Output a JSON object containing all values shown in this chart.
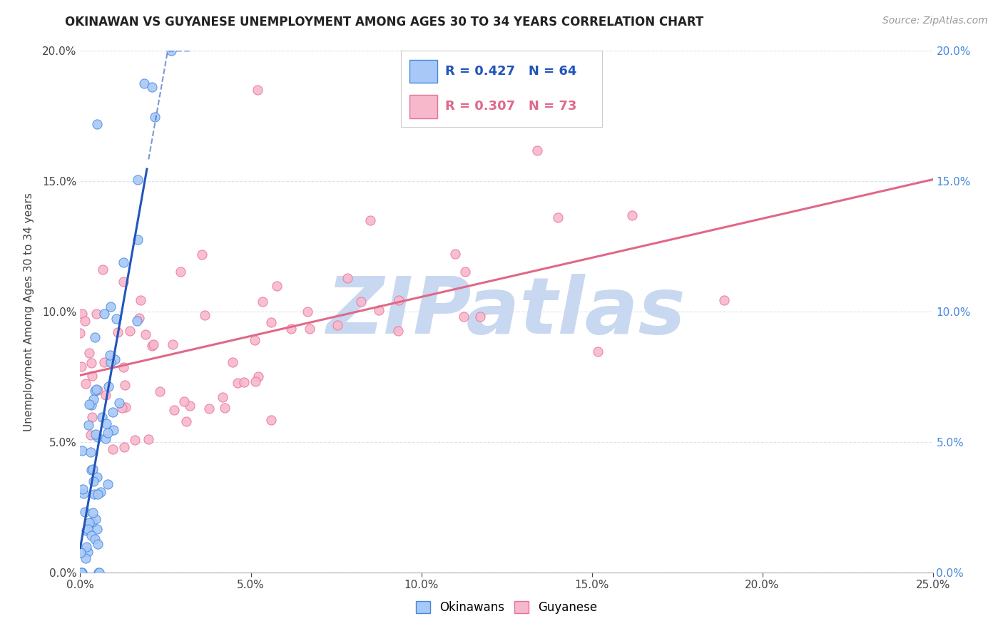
{
  "title": "OKINAWAN VS GUYANESE UNEMPLOYMENT AMONG AGES 30 TO 34 YEARS CORRELATION CHART",
  "source": "Source: ZipAtlas.com",
  "ylabel": "Unemployment Among Ages 30 to 34 years",
  "xlim": [
    0.0,
    0.25
  ],
  "ylim": [
    0.0,
    0.2
  ],
  "x_ticks": [
    0.0,
    0.05,
    0.1,
    0.15,
    0.2,
    0.25
  ],
  "y_ticks": [
    0.0,
    0.05,
    0.1,
    0.15,
    0.2
  ],
  "okinawan_R": 0.427,
  "okinawan_N": 64,
  "guyanese_R": 0.307,
  "guyanese_N": 73,
  "okinawan_color": "#A8C8F8",
  "guyanese_color": "#F8B8CC",
  "okinawan_edge_color": "#4488DD",
  "guyanese_edge_color": "#E87098",
  "okinawan_line_color": "#2255BB",
  "guyanese_line_color": "#E06888",
  "watermark": "ZIPatlas",
  "watermark_color": "#C8D8F0",
  "background_color": "#FFFFFF",
  "grid_color": "#D8E4F4",
  "tick_color_blue": "#4488DD",
  "legend_box_color": "#E8EEF8"
}
